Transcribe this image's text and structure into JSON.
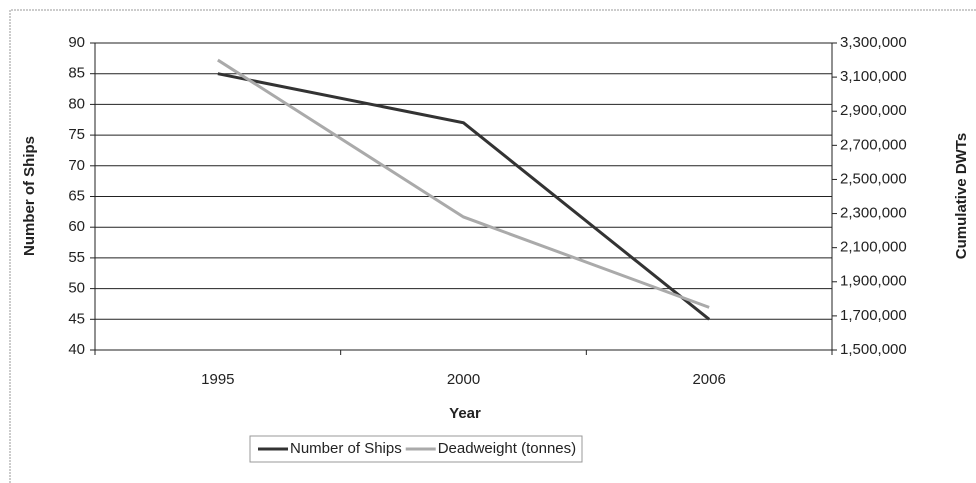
{
  "chart_data": {
    "type": "line",
    "categories": [
      "1995",
      "2000",
      "2006"
    ],
    "series": [
      {
        "name": "Number of Ships",
        "color": "#333333",
        "values": [
          85,
          77,
          45
        ]
      },
      {
        "name": "Deadweight (tonnes)",
        "color": "#aaaaaa",
        "axis": "y2",
        "values": [
          3200000,
          2280000,
          1750000
        ]
      }
    ],
    "xlabel": "Year",
    "ylabel": "Number of Ships",
    "y2label": "Cumulative DWTs",
    "ylim": [
      40,
      90
    ],
    "yticks": [
      40,
      45,
      50,
      55,
      60,
      65,
      70,
      75,
      80,
      85,
      90
    ],
    "y2lim": [
      1500000,
      3300000
    ],
    "y2ticks": [
      {
        "value": 1500000,
        "label": "1,500,000"
      },
      {
        "value": 1700000,
        "label": "1,700,000"
      },
      {
        "value": 1900000,
        "label": "1,900,000"
      },
      {
        "value": 2100000,
        "label": "2,100,000"
      },
      {
        "value": 2300000,
        "label": "2,300,000"
      },
      {
        "value": 2500000,
        "label": "2,500,000"
      },
      {
        "value": 2700000,
        "label": "2,700,000"
      },
      {
        "value": 2900000,
        "label": "2,900,000"
      },
      {
        "value": 3100000,
        "label": "3,100,000"
      },
      {
        "value": 3300000,
        "label": "3,300,000"
      }
    ],
    "grid": true,
    "legend": "bottom"
  }
}
